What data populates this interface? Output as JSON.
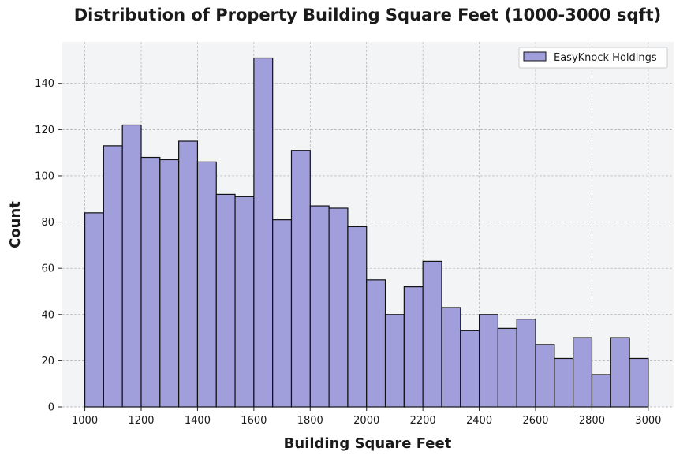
{
  "chart_data": {
    "type": "bar",
    "title": "Distribution of Property Building Square Feet (1000-3000 sqft)",
    "xlabel": "Building Square Feet",
    "ylabel": "Count",
    "xlim": [
      920,
      3090
    ],
    "ylim": [
      0,
      158
    ],
    "x_ticks": [
      1000,
      1200,
      1400,
      1600,
      1800,
      2000,
      2200,
      2400,
      2600,
      2800,
      3000
    ],
    "y_ticks": [
      0,
      20,
      40,
      60,
      80,
      100,
      120,
      140
    ],
    "grid": true,
    "legend_position": "top-right",
    "bin_start": 1000,
    "bin_width": 66.67,
    "series": [
      {
        "name": "EasyKnock Holdings",
        "color": "#a09fdb",
        "edge_color": "#111111",
        "values": [
          84,
          113,
          122,
          108,
          107,
          115,
          106,
          92,
          91,
          151,
          81,
          111,
          87,
          86,
          78,
          55,
          40,
          52,
          63,
          43,
          33,
          40,
          34,
          38,
          27,
          21,
          30,
          14,
          30,
          21
        ]
      }
    ]
  },
  "style": {
    "plot_background": "#f3f4f6",
    "grid_color": "#b0b0b0"
  }
}
